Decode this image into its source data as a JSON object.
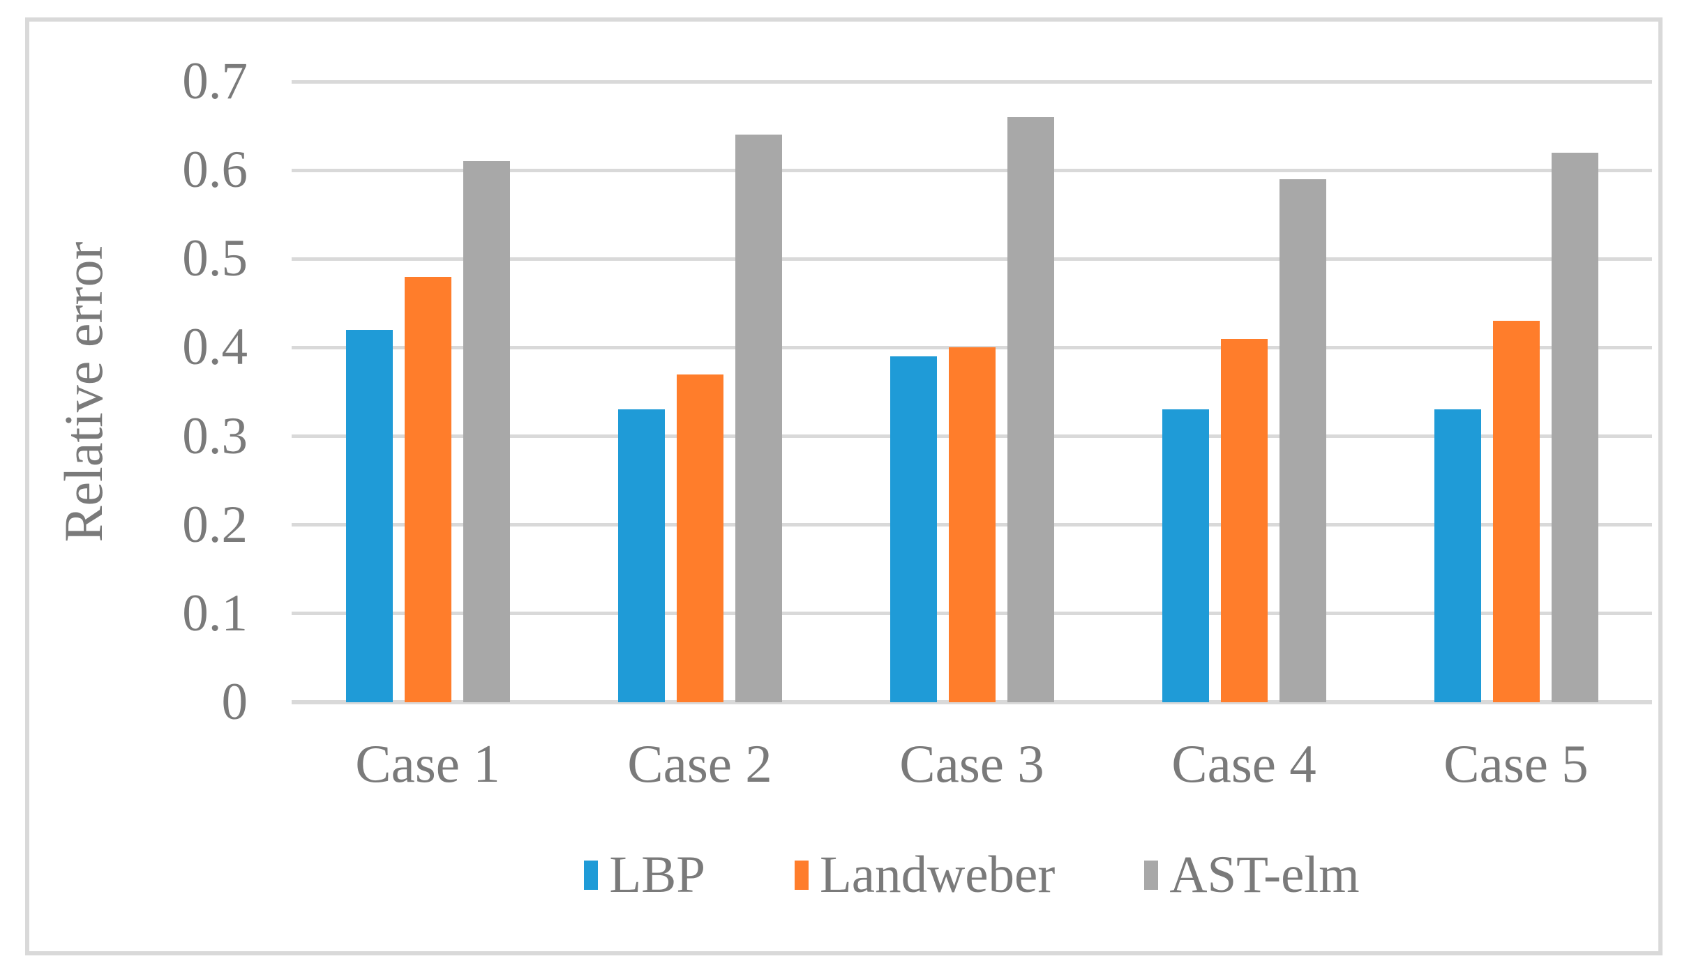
{
  "chart_data": {
    "type": "bar",
    "title": "",
    "xlabel": "",
    "ylabel": "Relative error",
    "categories": [
      "Case 1",
      "Case 2",
      "Case 3",
      "Case 4",
      "Case 5"
    ],
    "series": [
      {
        "name": "LBP",
        "color": "#1F9BD7",
        "values": [
          0.42,
          0.33,
          0.39,
          0.33,
          0.33
        ]
      },
      {
        "name": "Landweber",
        "color": "#FF7D2B",
        "values": [
          0.48,
          0.37,
          0.4,
          0.41,
          0.43
        ]
      },
      {
        "name": "AST-elm",
        "color": "#A8A8A8",
        "values": [
          0.61,
          0.64,
          0.66,
          0.59,
          0.62
        ]
      }
    ],
    "ylim": [
      0,
      0.7
    ],
    "ytick_step": 0.1,
    "ytick_labels": [
      "0",
      "0.1",
      "0.2",
      "0.3",
      "0.4",
      "0.5",
      "0.6",
      "0.7"
    ],
    "grid": true,
    "legend_position": "bottom",
    "colors": {
      "gridline": "#D9D9D9",
      "frame_border": "#D9D9D9",
      "axis_text": "#7A7A7A",
      "background": "#FFFFFF"
    }
  }
}
